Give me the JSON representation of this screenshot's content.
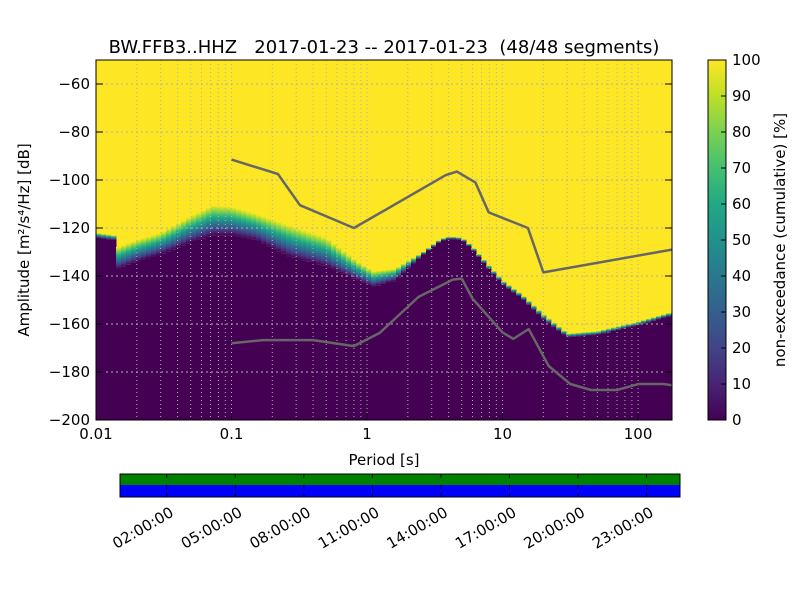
{
  "chart_data": {
    "type": "heatmap",
    "title": "BW.FFB3..HHZ   2017-01-23 -- 2017-01-23  (48/48 segments)",
    "xlabel": "Period [s]",
    "ylabel": "Amplitude [m²/s⁴/Hz] [dB]",
    "xscale": "log",
    "xlim": [
      0.01,
      178
    ],
    "ylim": [
      -200,
      -50
    ],
    "xticks": [
      {
        "v": 0.01,
        "label": "0.01"
      },
      {
        "v": 0.1,
        "label": "0.1"
      },
      {
        "v": 1,
        "label": "1"
      },
      {
        "v": 10,
        "label": "10"
      },
      {
        "v": 100,
        "label": "100"
      }
    ],
    "yticks": [
      {
        "v": -60,
        "label": "−60"
      },
      {
        "v": -80,
        "label": "−80"
      },
      {
        "v": -100,
        "label": "−100"
      },
      {
        "v": -120,
        "label": "−120"
      },
      {
        "v": -140,
        "label": "−140"
      },
      {
        "v": -160,
        "label": "−160"
      },
      {
        "v": -180,
        "label": "−180"
      },
      {
        "v": -200,
        "label": "−200"
      }
    ],
    "grid": true,
    "density_envelope": {
      "period": [
        0.01,
        0.0135,
        0.0145,
        0.02,
        0.03,
        0.05,
        0.073,
        0.1,
        0.15,
        0.27,
        0.5,
        0.8,
        1.1,
        1.6,
        2.6,
        3.5,
        4.1,
        5,
        6,
        8,
        10,
        14,
        20,
        30,
        50,
        100,
        178
      ],
      "top_db": [
        -122,
        -123,
        -128,
        -125,
        -122,
        -115,
        -110.5,
        -111,
        -114,
        -119,
        -124,
        -133,
        -138,
        -137,
        -130,
        -124.5,
        -123.5,
        -124,
        -128,
        -136,
        -142,
        -148,
        -156,
        -164,
        -163,
        -159,
        -155
      ],
      "purple_top_db": [
        -124,
        -125,
        -137,
        -134,
        -131,
        -126,
        -123,
        -123,
        -125,
        -132,
        -136,
        -141,
        -144.5,
        -142,
        -131,
        -125.5,
        -124.5,
        -125,
        -129,
        -137.5,
        -143.5,
        -149.5,
        -158,
        -165.5,
        -164.5,
        -160.5,
        -156.5
      ]
    },
    "noise_models": [
      {
        "name": "NHNM",
        "color": "#666666",
        "period": [
          0.1,
          0.22,
          0.32,
          0.8,
          3.8,
          4.6,
          6.3,
          7.9,
          15.4,
          20,
          178
        ],
        "db": [
          -91.5,
          -97.5,
          -110.5,
          -120,
          -98,
          -96.5,
          -101,
          -113.5,
          -120,
          -138.5,
          -129
        ]
      },
      {
        "name": "NLNM",
        "color": "#666666",
        "period": [
          0.1,
          0.17,
          0.4,
          0.8,
          1.24,
          2.4,
          4.3,
          5,
          6,
          10,
          12,
          15.6,
          21.9,
          31.6,
          45,
          70,
          101,
          154,
          178
        ],
        "db": [
          -168,
          -166.7,
          -166.7,
          -169.2,
          -163.7,
          -148.7,
          -141.5,
          -141.1,
          -149.4,
          -163.5,
          -166.2,
          -162.1,
          -177.5,
          -185,
          -187.5,
          -187.5,
          -185,
          -185,
          -185.5
        ]
      }
    ],
    "colorbar": {
      "label": "non-exceedance (cumulative) [%]",
      "range": [
        0,
        100
      ],
      "ticks": [
        "0",
        "10",
        "20",
        "30",
        "40",
        "50",
        "60",
        "70",
        "80",
        "90",
        "100"
      ],
      "colormap": [
        "#440154",
        "#482475",
        "#414487",
        "#355f8d",
        "#2a788e",
        "#21918c",
        "#22a884",
        "#44bf70",
        "#7ad151",
        "#bddf26",
        "#fde725"
      ]
    },
    "coverage": {
      "data_color": "#008000",
      "used_color": "#0000ff",
      "tick_labels": [
        "02:00:00",
        "05:00:00",
        "08:00:00",
        "11:00:00",
        "14:00:00",
        "17:00:00",
        "20:00:00",
        "23:00:00"
      ],
      "tick_hours": [
        2,
        5,
        8,
        11,
        14,
        17,
        20,
        23
      ]
    }
  }
}
